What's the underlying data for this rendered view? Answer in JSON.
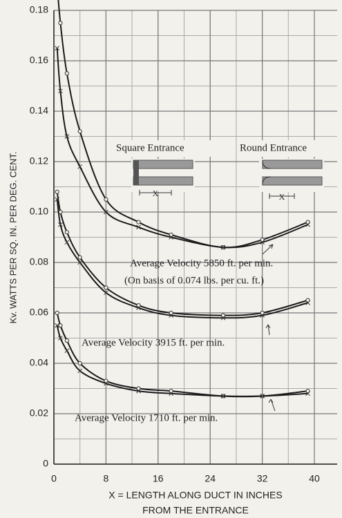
{
  "chart_data": {
    "type": "line",
    "y_label": "Kv. WATTS PER SQ. IN. PER DEG. CENT.",
    "x_label": [
      "X = LENGTH ALONG DUCT IN INCHES",
      "FROM THE ENTRANCE"
    ],
    "x": [
      0.5,
      1,
      2,
      4,
      8,
      13,
      18,
      26,
      32,
      39
    ],
    "series": [
      {
        "name": "Average Velocity 5850 ft. per min.",
        "note": "(On basis of 0.074 lbs. per cu. ft.)",
        "color": "#1a1a1a",
        "lines": [
          [
            0.19,
            0.175,
            0.155,
            0.132,
            0.105,
            0.096,
            0.091,
            0.086,
            0.089,
            0.096
          ],
          [
            0.165,
            0.148,
            0.13,
            0.118,
            0.1,
            0.094,
            0.09,
            0.086,
            0.088,
            0.095
          ]
        ]
      },
      {
        "name": "Average Velocity 3915 ft. per min.",
        "color": "#1a1a1a",
        "lines": [
          [
            0.108,
            0.1,
            0.092,
            0.082,
            0.07,
            0.063,
            0.06,
            0.059,
            0.06,
            0.065
          ],
          [
            0.105,
            0.095,
            0.088,
            0.08,
            0.068,
            0.062,
            0.059,
            0.058,
            0.059,
            0.064
          ]
        ]
      },
      {
        "name": "Average Velocity 1710 ft. per min.",
        "color": "#1a1a1a",
        "lines": [
          [
            0.06,
            0.055,
            0.049,
            0.04,
            0.033,
            0.03,
            0.029,
            0.027,
            0.027,
            0.029
          ],
          [
            0.055,
            0.05,
            0.045,
            0.037,
            0.032,
            0.029,
            0.028,
            0.027,
            0.027,
            0.028
          ]
        ]
      }
    ],
    "inset_labels": [
      "Square Entrance",
      "Round Entrance",
      "X",
      "X"
    ],
    "xlim": [
      0,
      43.5
    ],
    "xticks": [
      0,
      8,
      16,
      24,
      32,
      40
    ],
    "ylim": [
      0,
      0.18
    ],
    "yticks": [
      0,
      0.02,
      0.04,
      0.06,
      0.08,
      {
        "value": 0.1,
        "label": "0.10"
      },
      0.12,
      0.14,
      0.16,
      0.18
    ],
    "grid": true,
    "grid_step_x": 4,
    "grid_step_y": 0.01
  }
}
